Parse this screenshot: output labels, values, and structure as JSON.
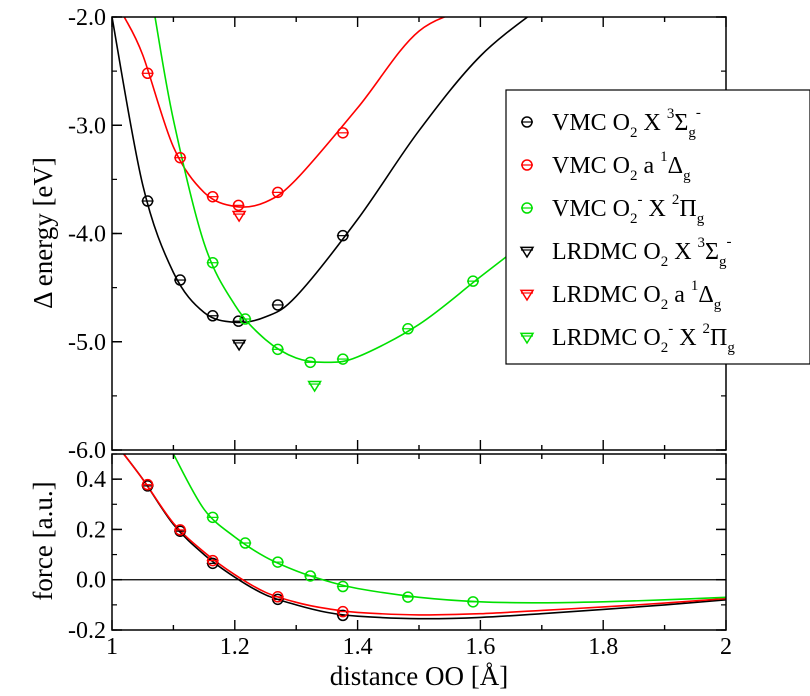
{
  "chart_data": [
    {
      "type": "scatter",
      "title": "",
      "xlabel": "",
      "ylabel": "Δ energy [eV]",
      "xlim": [
        1.0,
        2.0
      ],
      "ylim": [
        -6.0,
        -2.0
      ],
      "yticks": [
        "-6.0",
        "-5.0",
        "-4.0",
        "-3.0",
        "-2.0"
      ],
      "grid": false,
      "legend_position": "right",
      "series": [
        {
          "name": "VMC O2 X 3Σg-",
          "color": "#000000",
          "marker": "circle",
          "x": [
            1.058,
            1.111,
            1.164,
            1.206,
            1.27,
            1.376
          ],
          "y": [
            -3.7,
            -4.43,
            -4.76,
            -4.81,
            -4.66,
            -4.02
          ]
        },
        {
          "name": "VMC O2 a 1Δg",
          "color": "#ff0000",
          "marker": "circle",
          "x": [
            1.058,
            1.111,
            1.164,
            1.206,
            1.27,
            1.376
          ],
          "y": [
            -2.52,
            -3.3,
            -3.66,
            -3.74,
            -3.62,
            -3.07
          ]
        },
        {
          "name": "VMC O2- X 2Πg",
          "color": "#00e000",
          "marker": "circle",
          "x": [
            1.164,
            1.217,
            1.27,
            1.323,
            1.376,
            1.482,
            1.588
          ],
          "y": [
            -4.27,
            -4.79,
            -5.07,
            -5.19,
            -5.16,
            -4.88,
            -4.44
          ]
        },
        {
          "name": "LRDMC O2 X 3Σg-",
          "color": "#000000",
          "marker": "triangle-down",
          "x": [
            1.207
          ],
          "y": [
            -5.02
          ]
        },
        {
          "name": "LRDMC O2 a 1Δg",
          "color": "#ff0000",
          "marker": "triangle-down",
          "x": [
            1.207
          ],
          "y": [
            -3.83
          ]
        },
        {
          "name": "LRDMC O2- X 2Πg",
          "color": "#00e000",
          "marker": "triangle-down",
          "x": [
            1.33
          ],
          "y": [
            -5.4
          ]
        }
      ],
      "fit_curves": [
        {
          "series": "VMC O2 X 3Σg-",
          "color": "#000000",
          "x": [
            1.0,
            1.05,
            1.1,
            1.15,
            1.2,
            1.25,
            1.3,
            1.4,
            1.5,
            1.6,
            1.7
          ],
          "y": [
            -2.0,
            -3.55,
            -4.36,
            -4.73,
            -4.82,
            -4.77,
            -4.58,
            -3.87,
            -3.05,
            -2.36,
            -1.9
          ]
        },
        {
          "series": "VMC O2 a 1Δg",
          "color": "#ff0000",
          "x": [
            1.02,
            1.05,
            1.1,
            1.15,
            1.2,
            1.25,
            1.3,
            1.4,
            1.5,
            1.6
          ],
          "y": [
            -2.0,
            -2.35,
            -3.2,
            -3.62,
            -3.75,
            -3.71,
            -3.5,
            -2.84,
            -2.13,
            -1.9
          ]
        },
        {
          "series": "VMC O2- X 2Πg",
          "color": "#00e000",
          "x": [
            1.07,
            1.1,
            1.15,
            1.2,
            1.25,
            1.3,
            1.35,
            1.4,
            1.5,
            1.6,
            1.7
          ],
          "y": [
            -2.0,
            -2.95,
            -4.09,
            -4.66,
            -4.98,
            -5.15,
            -5.19,
            -5.14,
            -4.84,
            -4.4,
            -3.96
          ]
        }
      ]
    },
    {
      "type": "scatter",
      "title": "",
      "xlabel": "distance OO [Å]",
      "ylabel": "force [a.u.]",
      "xlim": [
        1.0,
        2.0
      ],
      "ylim": [
        -0.2,
        0.5
      ],
      "xticks": [
        "1",
        "1.2",
        "1.4",
        "1.6",
        "1.8",
        "2"
      ],
      "yticks": [
        "-0.2",
        "0.0",
        "0.2",
        "0.4"
      ],
      "zero_line": true,
      "grid": false,
      "series": [
        {
          "name": "VMC O2 X 3Σg-",
          "color": "#000000",
          "marker": "circle",
          "x": [
            1.058,
            1.111,
            1.164,
            1.27,
            1.376
          ],
          "y": [
            0.373,
            0.193,
            0.065,
            -0.078,
            -0.142
          ]
        },
        {
          "name": "VMC O2 a 1Δg",
          "color": "#ff0000",
          "marker": "circle",
          "x": [
            1.058,
            1.111,
            1.164,
            1.27,
            1.376
          ],
          "y": [
            0.378,
            0.198,
            0.076,
            -0.068,
            -0.127
          ]
        },
        {
          "name": "VMC O2- X 2Πg",
          "color": "#00e000",
          "marker": "circle",
          "x": [
            1.164,
            1.217,
            1.27,
            1.323,
            1.376,
            1.482,
            1.588
          ],
          "y": [
            0.248,
            0.146,
            0.07,
            0.015,
            -0.027,
            -0.069,
            -0.088
          ]
        }
      ],
      "fit_curves": [
        {
          "series": "VMC O2 X 3Σg-",
          "color": "#000000",
          "x": [
            1.0,
            1.05,
            1.1,
            1.15,
            1.2,
            1.25,
            1.3,
            1.35,
            1.4,
            1.5,
            1.6,
            1.7,
            1.8,
            1.9,
            2.0
          ],
          "y": [
            0.56,
            0.4,
            0.22,
            0.1,
            0.01,
            -0.06,
            -0.1,
            -0.13,
            -0.145,
            -0.155,
            -0.15,
            -0.135,
            -0.118,
            -0.1,
            -0.08
          ]
        },
        {
          "series": "VMC O2 a 1Δg",
          "color": "#ff0000",
          "x": [
            1.0,
            1.05,
            1.1,
            1.15,
            1.2,
            1.25,
            1.3,
            1.35,
            1.4,
            1.5,
            1.6,
            1.7,
            1.8,
            1.9,
            2.0
          ],
          "y": [
            0.56,
            0.4,
            0.225,
            0.11,
            0.02,
            -0.05,
            -0.09,
            -0.115,
            -0.13,
            -0.14,
            -0.135,
            -0.122,
            -0.108,
            -0.093,
            -0.075
          ]
        },
        {
          "series": "VMC O2- X 2Πg",
          "color": "#00e000",
          "x": [
            1.1,
            1.15,
            1.2,
            1.25,
            1.3,
            1.35,
            1.4,
            1.5,
            1.6,
            1.7,
            1.8,
            1.9,
            2.0
          ],
          "y": [
            0.5,
            0.28,
            0.17,
            0.09,
            0.035,
            -0.005,
            -0.035,
            -0.07,
            -0.088,
            -0.092,
            -0.088,
            -0.08,
            -0.07
          ]
        }
      ]
    }
  ],
  "legend": {
    "entries": [
      {
        "marker": "circle",
        "color": "#000000",
        "prefix": "VMC O",
        "sub": "2",
        "sup1": "",
        "mid": "X ",
        "sup2": "3",
        "sym": "Σ",
        "symsub": "g",
        "symsup": "-"
      },
      {
        "marker": "circle",
        "color": "#ff0000",
        "prefix": "VMC O",
        "sub": "2",
        "sup1": "",
        "mid": "a ",
        "sup2": "1",
        "sym": "Δ",
        "symsub": "g",
        "symsup": ""
      },
      {
        "marker": "circle",
        "color": "#00e000",
        "prefix": "VMC O",
        "sub": "2",
        "sup1": "-",
        "mid": "X ",
        "sup2": "2",
        "sym": "Π",
        "symsub": "g",
        "symsup": ""
      },
      {
        "marker": "triangle-down",
        "color": "#000000",
        "prefix": "LRDMC O",
        "sub": "2",
        "sup1": "",
        "mid": "X ",
        "sup2": "3",
        "sym": "Σ",
        "symsub": "g",
        "symsup": "-"
      },
      {
        "marker": "triangle-down",
        "color": "#ff0000",
        "prefix": "LRDMC O",
        "sub": "2",
        "sup1": "",
        "mid": "a ",
        "sup2": "1",
        "sym": "Δ",
        "symsub": "g",
        "symsup": ""
      },
      {
        "marker": "triangle-down",
        "color": "#00e000",
        "prefix": "LRDMC O",
        "sub": "2",
        "sup1": "-",
        "mid": "X ",
        "sup2": "2",
        "sym": "Π",
        "symsub": "g",
        "symsup": ""
      }
    ]
  }
}
